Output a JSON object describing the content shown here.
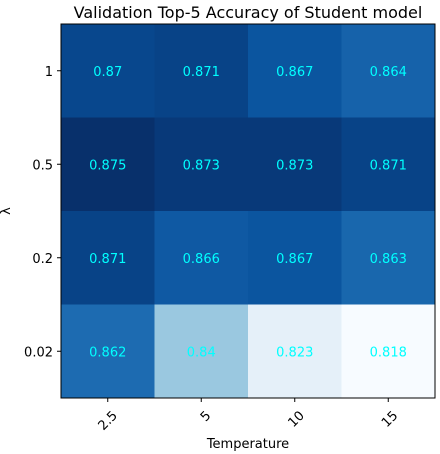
{
  "chart_data": {
    "type": "heatmap",
    "title": "Validation Top-5 Accuracy of Student model",
    "xlabel": "Temperature",
    "ylabel": "λ",
    "x_categories": [
      "2.5",
      "5",
      "10",
      "15"
    ],
    "y_categories": [
      "1",
      "0.5",
      "0.2",
      "0.02"
    ],
    "values": [
      [
        "0.87",
        "0.871",
        "0.867",
        "0.864"
      ],
      [
        "0.875",
        "0.873",
        "0.873",
        "0.871"
      ],
      [
        "0.871",
        "0.866",
        "0.867",
        "0.863"
      ],
      [
        "0.862",
        "0.84",
        "0.823",
        "0.818"
      ]
    ],
    "colormap": "Blues",
    "value_label_color": "#00ffff",
    "grid": false,
    "x_tick_rotation": -45
  }
}
